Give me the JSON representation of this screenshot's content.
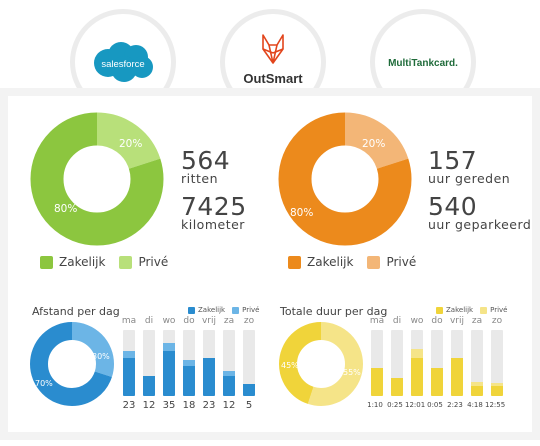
{
  "logos": {
    "salesforce": "salesforce",
    "outsmart": "OutSmart",
    "multitankcard": "MultiTankcard."
  },
  "colors": {
    "green": "#8cc63f",
    "green_light": "#b8e07a",
    "orange": "#ec8a1c",
    "orange_light": "#f3b677",
    "blue": "#2a8ccf",
    "blue_light": "#6cb5e6",
    "yellow": "#f0d43a",
    "yellow_light": "#f5e488",
    "bar_bg": "#e9e9e9"
  },
  "left_summary": {
    "pct_large": "80%",
    "pct_small": "20%",
    "value_large": 80,
    "value_small": 20,
    "stat1_num": "564",
    "stat1_label": "ritten",
    "stat2_num": "7425",
    "stat2_label": "kilometer",
    "legend_business": "Zakelijk",
    "legend_private": "Privé"
  },
  "right_summary": {
    "pct_large": "80%",
    "pct_small": "20%",
    "value_large": 80,
    "value_small": 20,
    "stat1_num": "157",
    "stat1_label": "uur gereden",
    "stat2_num": "540",
    "stat2_label": "uur geparkeerd",
    "legend_business": "Zakelijk",
    "legend_private": "Privé"
  },
  "distance": {
    "title": "Afstand per dag",
    "legend_business": "Zakelijk",
    "legend_private": "Privé",
    "pct_large": "70%",
    "pct_small": "30%",
    "value_large": 70,
    "value_small": 30,
    "days": [
      "ma",
      "di",
      "wo",
      "do",
      "vrij",
      "za",
      "zo"
    ],
    "values": [
      "23",
      "12",
      "35",
      "18",
      "23",
      "12",
      "5"
    ],
    "business_fraction": [
      0.58,
      0.3,
      0.68,
      0.45,
      0.58,
      0.3,
      0.18
    ],
    "private_fraction": [
      0.1,
      0.0,
      0.12,
      0.1,
      0.0,
      0.08,
      0.0
    ]
  },
  "duration": {
    "title": "Totale duur per dag",
    "legend_business": "Zakelijk",
    "legend_private": "Privé",
    "pct_large": "45%",
    "pct_small": "55%",
    "value_large": 45,
    "value_small": 55,
    "days": [
      "ma",
      "di",
      "wo",
      "do",
      "vrij",
      "za",
      "zo"
    ],
    "values": [
      "1:10",
      "0:25",
      "12:01",
      "0:05",
      "2:23",
      "4:18",
      "12:55"
    ],
    "business_fraction": [
      0.42,
      0.28,
      0.58,
      0.42,
      0.58,
      0.15,
      0.15
    ],
    "private_fraction": [
      0.0,
      0.0,
      0.14,
      0.0,
      0.0,
      0.07,
      0.05
    ]
  }
}
